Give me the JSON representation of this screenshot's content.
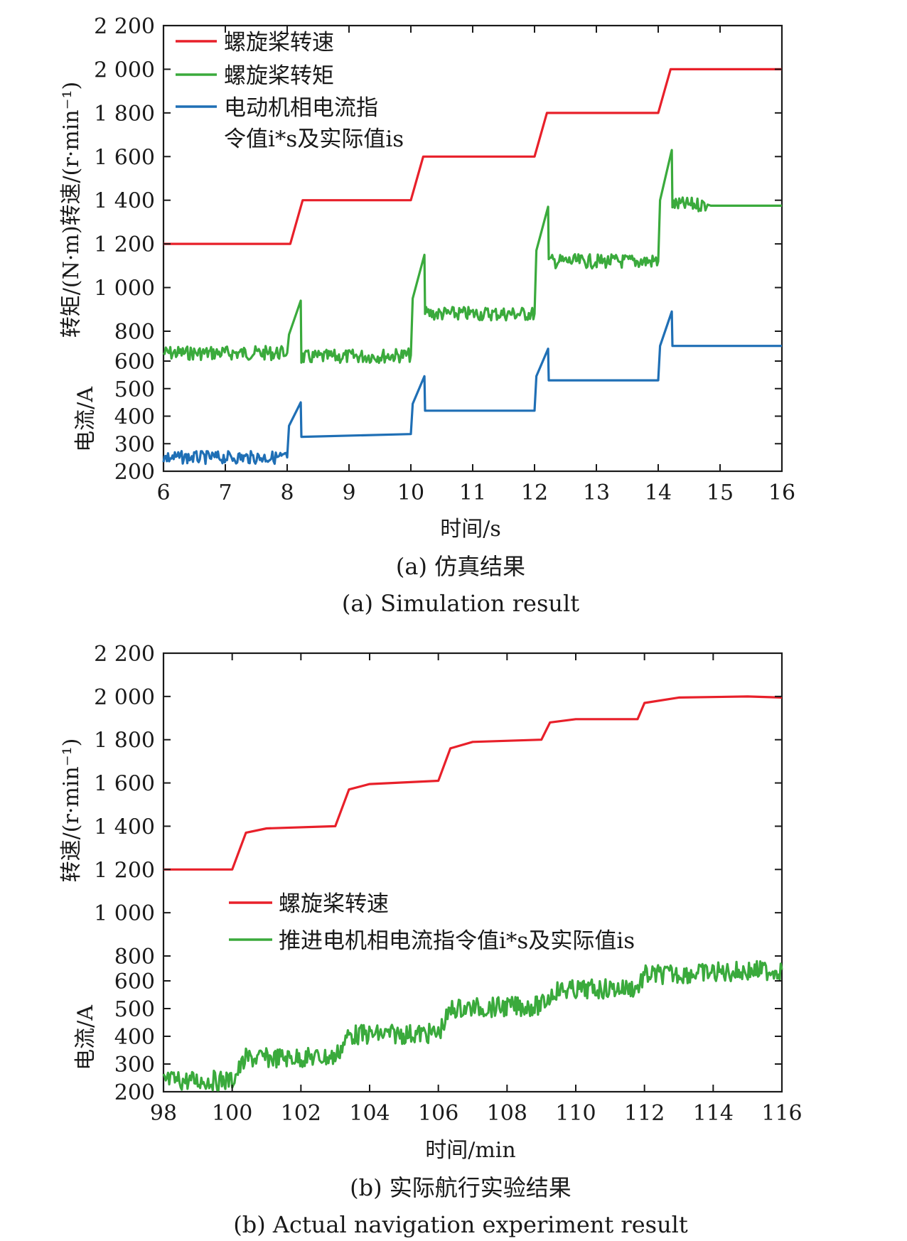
{
  "colors": {
    "speed": "#e8202a",
    "torque": "#3aaa3c",
    "current": "#1f6fb5",
    "axis": "#1a1a1a"
  },
  "chart_data": [
    {
      "type": "line",
      "caption_cn": "(a) 仿真结果",
      "caption_en": "(a) Simulation result",
      "xlabel": "时间/s",
      "ylabel_top": "转矩/(N·m)转速/(r·min⁻¹)",
      "ylabel_bottom": "电流/A",
      "xlim": [
        6,
        16
      ],
      "xticks": [
        "6",
        "7",
        "8",
        "9",
        "10",
        "11",
        "12",
        "13",
        "14",
        "15",
        "16"
      ],
      "upper_axis": {
        "range": [
          800,
          2200
        ],
        "ticks": [
          "800",
          "1 000",
          "1 200",
          "1 400",
          "1 600",
          "1 800",
          "2 000",
          "2 200"
        ]
      },
      "lower_axis": {
        "range": [
          200,
          600
        ],
        "ticks": [
          "200",
          "300",
          "400",
          "500",
          "600"
        ]
      },
      "legend": [
        "螺旋桨转速",
        "螺旋桨转矩",
        "电动机相电流指",
        "令值i*s及实际值is"
      ],
      "legend_position": "top-left",
      "series": [
        {
          "name": "螺旋桨转速",
          "axis": "upper",
          "color_key": "speed",
          "x": [
            6,
            8.05,
            8.25,
            10.0,
            10.2,
            12.0,
            12.2,
            14.0,
            14.2,
            16
          ],
          "y": [
            1200,
            1200,
            1400,
            1400,
            1600,
            1600,
            1800,
            1800,
            2000,
            2000
          ]
        },
        {
          "name": "螺旋桨转矩",
          "axis": "upper",
          "color_key": "torque",
          "noise": 10,
          "x": [
            6,
            8.0,
            8.03,
            8.22,
            8.23,
            10.0,
            10.03,
            10.22,
            10.23,
            12.0,
            12.03,
            12.22,
            12.23,
            14.0,
            14.03,
            14.22,
            14.23,
            14.8,
            14.85,
            16
          ],
          "y": [
            700,
            700,
            785,
            940,
            680,
            690,
            950,
            1150,
            880,
            880,
            1170,
            1370,
            1120,
            1120,
            1400,
            1630,
            1380,
            1380,
            1375,
            1375
          ],
          "noisy_until": 14.8
        },
        {
          "name": "电动机相电流指令值及实际值",
          "axis": "lower",
          "color_key": "current",
          "noise": 9,
          "x": [
            6,
            8.0,
            8.03,
            8.22,
            8.23,
            10.0,
            10.03,
            10.22,
            10.23,
            12.0,
            12.03,
            12.22,
            12.23,
            14.0,
            14.03,
            14.22,
            14.23,
            16
          ],
          "y": [
            250,
            250,
            365,
            450,
            325,
            335,
            445,
            545,
            420,
            420,
            545,
            645,
            530,
            530,
            655,
            780,
            655,
            655
          ],
          "noisy_until": 8.0
        }
      ]
    },
    {
      "type": "line",
      "caption_cn": "(b) 实际航行实验结果",
      "caption_en": "(b) Actual navigation experiment result",
      "xlabel": "时间/min",
      "ylabel_top": "转速/(r·min⁻¹)",
      "ylabel_bottom": "电流/A",
      "xlim": [
        98,
        116
      ],
      "xticks": [
        "98",
        "100",
        "102",
        "104",
        "106",
        "108",
        "110",
        "112",
        "114",
        "116"
      ],
      "upper_axis": {
        "range": [
          800,
          2200
        ],
        "ticks": [
          "800",
          "1 000",
          "1 200",
          "1 400",
          "1 600",
          "1 800",
          "2 000",
          "2 200"
        ]
      },
      "lower_axis": {
        "range": [
          200,
          600
        ],
        "ticks": [
          "200",
          "300",
          "400",
          "500",
          "600"
        ]
      },
      "legend": [
        "螺旋桨转速",
        "推进电机相电流指令值i*s及实际值is"
      ],
      "legend_position": "center-left",
      "series": [
        {
          "name": "螺旋桨转速",
          "axis": "upper",
          "color_key": "speed",
          "x": [
            98,
            100.0,
            100.4,
            101.0,
            103.0,
            103.4,
            104.0,
            106.0,
            106.35,
            107.0,
            109.0,
            109.25,
            110.0,
            111.8,
            112.0,
            113.0,
            115.0,
            116
          ],
          "y": [
            1200,
            1200,
            1370,
            1390,
            1400,
            1570,
            1595,
            1610,
            1760,
            1790,
            1800,
            1880,
            1895,
            1895,
            1970,
            1995,
            2000,
            1995
          ]
        },
        {
          "name": "推进电机相电流指令值及实际值",
          "axis": "lower",
          "color_key": "torque",
          "noise": 14,
          "x": [
            98,
            100.0,
            100.4,
            103.0,
            103.4,
            106.0,
            106.4,
            109.0,
            109.4,
            111.8,
            112.0,
            116
          ],
          "y": [
            240,
            240,
            320,
            325,
            405,
            410,
            500,
            510,
            565,
            575,
            620,
            640
          ],
          "noisy_until": 116
        }
      ]
    }
  ]
}
